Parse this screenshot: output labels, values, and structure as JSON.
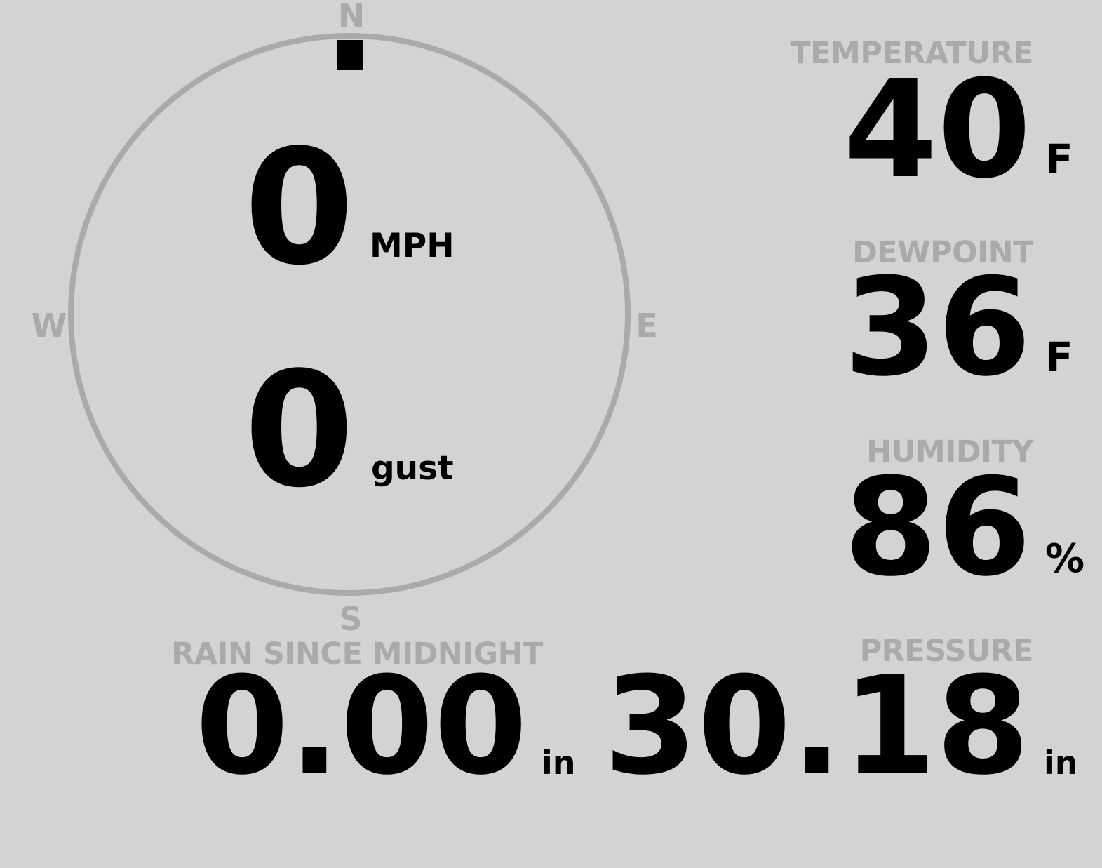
{
  "colors": {
    "background": "#d3d3d3",
    "muted": "#aaaaaa",
    "value": "#000000"
  },
  "wind": {
    "direction_deg": 0,
    "compass": {
      "n": "N",
      "e": "E",
      "s": "S",
      "w": "W"
    },
    "speed": "0",
    "speed_unit": "MPH",
    "gust": "0",
    "gust_unit": "gust"
  },
  "temperature": {
    "label": "TEMPERATURE",
    "value": "40",
    "unit": "F"
  },
  "dewpoint": {
    "label": "DEWPOINT",
    "value": "36",
    "unit": "F"
  },
  "humidity": {
    "label": "HUMIDITY",
    "value": "86",
    "unit": "%"
  },
  "pressure": {
    "label": "PRESSURE",
    "value": "30.18",
    "unit": "in"
  },
  "rain": {
    "label": "RAIN SINCE MIDNIGHT",
    "value": "0.00",
    "unit": "in"
  }
}
